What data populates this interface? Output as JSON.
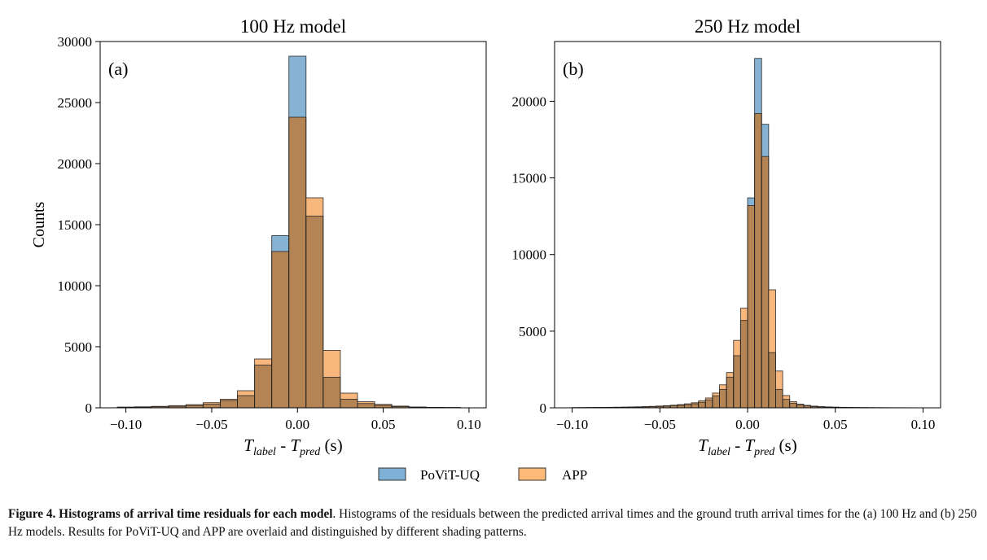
{
  "colors": {
    "povit": "#1f77b4",
    "app": "#ff7f0e",
    "overlap": "#b58454",
    "edge": "#222222"
  },
  "legend": {
    "items": [
      "PoViT-UQ",
      "APP"
    ]
  },
  "caption": {
    "label": "Figure 4.  Histograms of arrival time residuals for each model",
    "text": ". Histograms of the residuals between the predicted arrival times and the ground truth arrival times for the (a) 100 Hz and (b) 250 Hz models. Results for PoViT-UQ and APP are overlaid and distinguished by different shading patterns."
  },
  "chart_data": [
    {
      "type": "bar",
      "panel_label": "(a)",
      "title": "100 Hz model",
      "xlabel": {
        "t1": "T",
        "s1": "label",
        "mid": " - ",
        "t2": "T",
        "s2": "pred",
        "unit": " (s)"
      },
      "ylabel": "Counts",
      "xlim": [
        -0.115,
        0.11
      ],
      "ylim": [
        0,
        30000
      ],
      "xticks": [
        -0.1,
        -0.05,
        0.0,
        0.05,
        0.1
      ],
      "xtick_labels": [
        "−0.10",
        "−0.05",
        "0.00",
        "0.05",
        "0.10"
      ],
      "yticks": [
        0,
        5000,
        10000,
        15000,
        20000,
        25000,
        30000
      ],
      "ytick_labels": [
        "0",
        "5000",
        "10000",
        "15000",
        "20000",
        "25000",
        "30000"
      ],
      "bin_edges": [
        -0.105,
        -0.095,
        -0.085,
        -0.075,
        -0.065,
        -0.055,
        -0.045,
        -0.035,
        -0.025,
        -0.015,
        -0.005,
        0.005,
        0.015,
        0.025,
        0.035,
        0.045,
        0.055,
        0.065,
        0.075,
        0.085,
        0.095
      ],
      "series": [
        {
          "name": "PoViT-UQ",
          "values": [
            40,
            60,
            90,
            120,
            180,
            300,
            600,
            1000,
            3500,
            14100,
            28800,
            15700,
            2500,
            700,
            350,
            200,
            100,
            50,
            30,
            20
          ]
        },
        {
          "name": "APP",
          "values": [
            60,
            80,
            120,
            180,
            260,
            420,
            700,
            1400,
            4000,
            12800,
            23800,
            17200,
            4700,
            1200,
            500,
            280,
            140,
            70,
            40,
            25
          ]
        }
      ],
      "grid": false
    },
    {
      "type": "bar",
      "panel_label": "(b)",
      "title": "250 Hz model",
      "xlabel": {
        "t1": "T",
        "s1": "label",
        "mid": " - ",
        "t2": "T",
        "s2": "pred",
        "unit": " (s)"
      },
      "ylabel": "",
      "xlim": [
        -0.11,
        0.11
      ],
      "ylim": [
        0,
        23900
      ],
      "xticks": [
        -0.1,
        -0.05,
        0.0,
        0.05,
        0.1
      ],
      "xtick_labels": [
        "−0.10",
        "−0.05",
        "0.00",
        "0.05",
        "0.10"
      ],
      "yticks": [
        0,
        5000,
        10000,
        15000,
        20000
      ],
      "ytick_labels": [
        "0",
        "5000",
        "10000",
        "15000",
        "20000"
      ],
      "bin_edges": [
        -0.1,
        -0.096,
        -0.092,
        -0.088,
        -0.084,
        -0.08,
        -0.076,
        -0.072,
        -0.068,
        -0.064,
        -0.06,
        -0.056,
        -0.052,
        -0.048,
        -0.044,
        -0.04,
        -0.036,
        -0.032,
        -0.028,
        -0.024,
        -0.02,
        -0.016,
        -0.012,
        -0.008,
        -0.004,
        0.0,
        0.004,
        0.008,
        0.012,
        0.016,
        0.02,
        0.024,
        0.028,
        0.032,
        0.036,
        0.04,
        0.044,
        0.048,
        0.052,
        0.056,
        0.06,
        0.064,
        0.068,
        0.072,
        0.076,
        0.08,
        0.084,
        0.088,
        0.092,
        0.096,
        0.1
      ],
      "series": [
        {
          "name": "PoViT-UQ",
          "values": [
            10,
            12,
            15,
            18,
            22,
            26,
            30,
            36,
            42,
            50,
            60,
            72,
            88,
            105,
            130,
            160,
            200,
            260,
            360,
            520,
            780,
            1200,
            2000,
            3400,
            5700,
            13700,
            22800,
            18500,
            3600,
            1200,
            550,
            300,
            180,
            120,
            80,
            60,
            45,
            35,
            25,
            20,
            15,
            12,
            10,
            8,
            6,
            5,
            4,
            3,
            2,
            2
          ]
        },
        {
          "name": "APP",
          "values": [
            14,
            16,
            20,
            24,
            28,
            34,
            40,
            48,
            56,
            66,
            80,
            95,
            115,
            140,
            170,
            210,
            260,
            330,
            450,
            640,
            960,
            1500,
            2300,
            4400,
            6500,
            13200,
            19200,
            16400,
            7700,
            2400,
            800,
            400,
            240,
            160,
            110,
            80,
            60,
            45,
            34,
            26,
            20,
            16,
            13,
            10,
            8,
            6,
            5,
            4,
            3,
            2
          ]
        }
      ],
      "grid": false
    }
  ]
}
